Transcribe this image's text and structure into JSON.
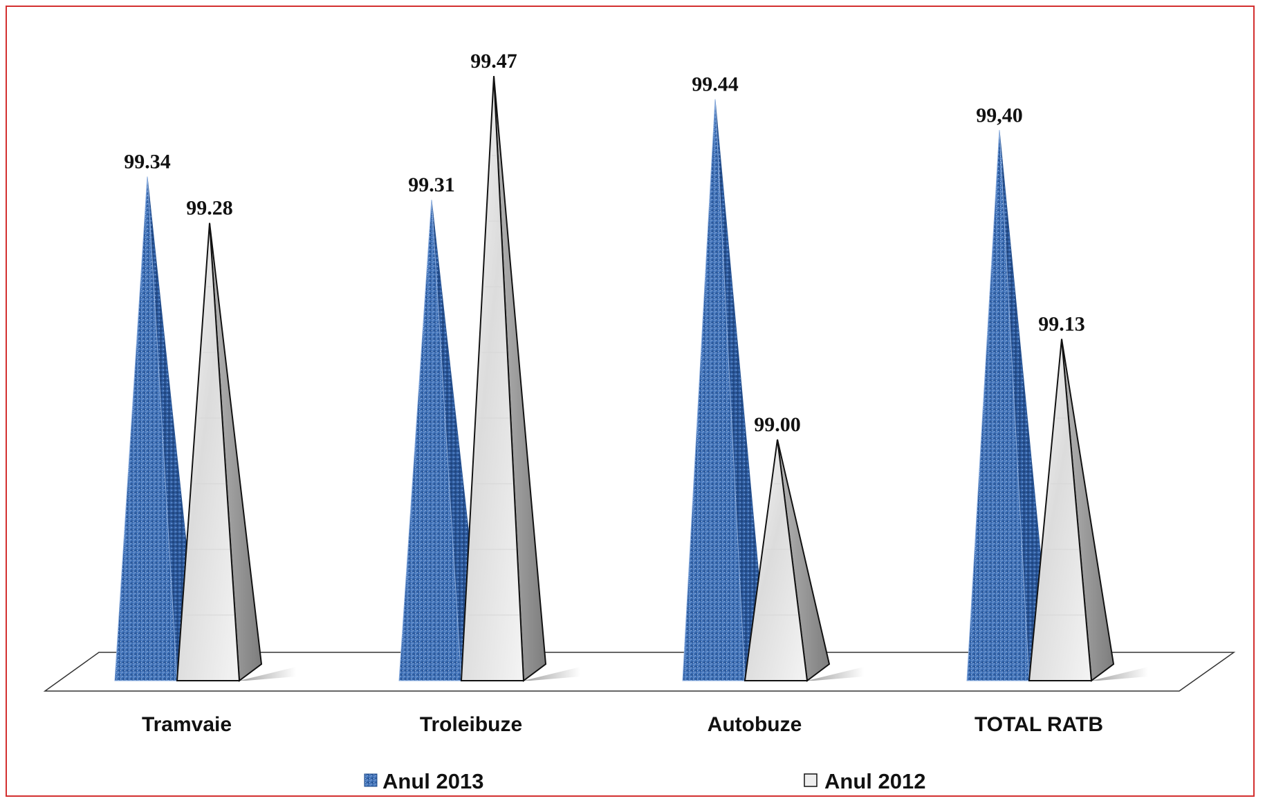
{
  "chart_data": {
    "type": "bar",
    "categories": [
      "Tramvaie",
      "Troleibuze",
      "Autobuze",
      "TOTAL RATB"
    ],
    "series": [
      {
        "name": "Anul 2013",
        "values": [
          99.34,
          99.31,
          99.44,
          99.4
        ],
        "labels": [
          "99.34",
          "99.31",
          "99.44",
          "99,40"
        ],
        "color": "#3d6fb5"
      },
      {
        "name": "Anul 2012",
        "values": [
          99.28,
          99.47,
          99.0,
          99.13
        ],
        "labels": [
          "99.28",
          "99.47",
          "99.00",
          "99.13"
        ],
        "color": "#e8e8e8"
      }
    ],
    "ylim": [
      98.5,
      99.5
    ],
    "grid": false,
    "legend_position": "bottom",
    "bar_shape": "pyramid"
  },
  "colors": {
    "frame_border": "#d32f2f",
    "series_2013": "#3d6fb5",
    "series_2013_dark": "#24508f",
    "series_2013_light": "#8fb0e0",
    "series_2012": "#eeeeee",
    "series_2012_side": "#9a9a9a",
    "outline": "#111111"
  }
}
